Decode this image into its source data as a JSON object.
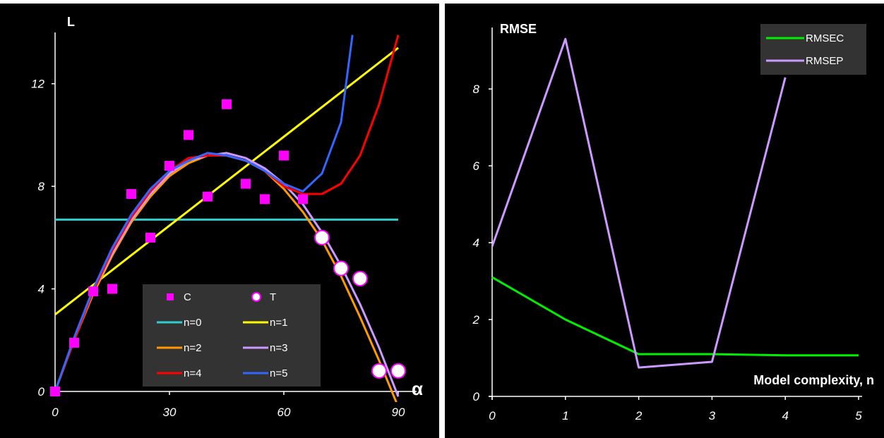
{
  "chart_data": [
    {
      "type": "scatter",
      "xlabel": "α",
      "ylabel": "L",
      "xlim": [
        0,
        90
      ],
      "ylim": [
        0,
        14
      ],
      "xticks": [
        "0",
        "30",
        "60",
        "90"
      ],
      "yticks": [
        "0",
        "4",
        "8",
        "12"
      ],
      "legend_position": "bottom-center",
      "points": [
        {
          "name": "C",
          "color": "#ff00ff",
          "marker": "square",
          "x": [
            0,
            5,
            10,
            15,
            20,
            25,
            30,
            35,
            40,
            45,
            50,
            55,
            60,
            65
          ],
          "y": [
            0,
            1.9,
            3.9,
            4.0,
            7.7,
            6.0,
            8.8,
            10.0,
            7.6,
            11.2,
            8.1,
            7.5,
            9.2,
            7.5
          ]
        },
        {
          "name": "T",
          "color": "#ffffff",
          "marker": "circle",
          "x": [
            70,
            75,
            80,
            85,
            90
          ],
          "y": [
            6.0,
            4.8,
            4.4,
            0.8,
            0.8
          ]
        }
      ],
      "series": [
        {
          "name": "n=0",
          "color": "#33cccc",
          "x": [
            0,
            90
          ],
          "y": [
            6.7,
            6.7
          ]
        },
        {
          "name": "n=1",
          "color": "#ffff00",
          "x": [
            0,
            90
          ],
          "y": [
            3.0,
            13.4
          ]
        },
        {
          "name": "n=2",
          "color": "#ff9900",
          "x": [
            0,
            5,
            10,
            15,
            20,
            25,
            30,
            35,
            40,
            45,
            50,
            55,
            60,
            65,
            70,
            75,
            80,
            85,
            90
          ],
          "y": [
            0,
            2.0,
            3.8,
            5.3,
            6.6,
            7.6,
            8.4,
            8.9,
            9.2,
            9.2,
            9.0,
            8.6,
            7.9,
            7.0,
            5.9,
            4.5,
            2.9,
            1.2,
            -0.6
          ]
        },
        {
          "name": "n=3",
          "color": "#cc99ff",
          "x": [
            0,
            5,
            10,
            15,
            20,
            25,
            30,
            35,
            40,
            45,
            50,
            55,
            60,
            65,
            70,
            75,
            80,
            85,
            90
          ],
          "y": [
            0,
            2.0,
            3.9,
            5.4,
            6.7,
            7.7,
            8.5,
            9.0,
            9.2,
            9.3,
            9.1,
            8.7,
            8.1,
            7.3,
            6.2,
            4.9,
            3.4,
            1.7,
            -0.2
          ]
        },
        {
          "name": "n=4",
          "color": "#ff0000",
          "x": [
            0,
            5,
            10,
            15,
            20,
            25,
            30,
            35,
            40,
            45,
            50,
            55,
            60,
            65,
            70,
            75,
            80,
            85,
            90
          ],
          "y": [
            0,
            2.0,
            3.9,
            5.5,
            6.8,
            7.8,
            8.6,
            9.1,
            9.2,
            9.2,
            9.0,
            8.6,
            8.0,
            7.7,
            7.7,
            8.1,
            9.2,
            11.2,
            13.9
          ]
        },
        {
          "name": "n=5",
          "color": "#3366ff",
          "x": [
            0,
            5,
            10,
            15,
            20,
            25,
            30,
            35,
            40,
            45,
            50,
            55,
            60,
            65,
            70,
            75,
            78
          ],
          "y": [
            0,
            2.1,
            4.0,
            5.6,
            6.9,
            7.9,
            8.6,
            9.0,
            9.3,
            9.2,
            9.0,
            8.6,
            8.1,
            7.8,
            8.5,
            10.5,
            13.9
          ]
        }
      ],
      "legend": [
        {
          "label": "C",
          "color": "#ff00ff",
          "kind": "square"
        },
        {
          "label": "T",
          "color": "#ffffff",
          "kind": "circle"
        },
        {
          "label": "n=0",
          "color": "#33cccc",
          "kind": "line"
        },
        {
          "label": "n=1",
          "color": "#ffff00",
          "kind": "line"
        },
        {
          "label": "n=2",
          "color": "#ff9900",
          "kind": "line"
        },
        {
          "label": "n=3",
          "color": "#cc99ff",
          "kind": "line"
        },
        {
          "label": "n=4",
          "color": "#ff0000",
          "kind": "line"
        },
        {
          "label": "n=5",
          "color": "#3366ff",
          "kind": "line"
        }
      ]
    },
    {
      "type": "line",
      "xlabel": "Model complexity, n",
      "ylabel": "RMSE",
      "xlim": [
        0,
        5
      ],
      "ylim": [
        0,
        9.6
      ],
      "xticks": [
        "0",
        "1",
        "2",
        "3",
        "4",
        "5"
      ],
      "yticks": [
        "0",
        "2",
        "4",
        "6",
        "8"
      ],
      "legend_position": "top-right",
      "series": [
        {
          "name": "RMSEC",
          "color": "#00ee00",
          "x": [
            0,
            1,
            2,
            3,
            4,
            5
          ],
          "y": [
            3.1,
            2.0,
            1.1,
            1.1,
            1.07,
            1.07
          ]
        },
        {
          "name": "RMSEP",
          "color": "#cc99ff",
          "x": [
            0,
            1,
            2,
            3,
            4
          ],
          "y": [
            3.9,
            9.3,
            0.75,
            0.9,
            8.3
          ]
        }
      ]
    }
  ]
}
